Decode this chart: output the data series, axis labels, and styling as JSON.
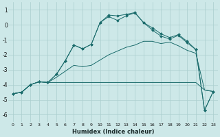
{
  "xlabel": "Humidex (Indice chaleur)",
  "background_color": "#cde8e8",
  "grid_color": "#aacece",
  "line_color": "#1a6b6b",
  "x_ticks": [
    0,
    1,
    2,
    3,
    4,
    5,
    6,
    7,
    8,
    9,
    10,
    11,
    12,
    13,
    14,
    15,
    16,
    17,
    18,
    19,
    20,
    21,
    22,
    23
  ],
  "ylim": [
    -6.5,
    1.5
  ],
  "xlim": [
    -0.5,
    23.5
  ],
  "yticks": [
    1,
    0,
    -1,
    -2,
    -3,
    -4,
    -5,
    -6
  ],
  "line_flat": {
    "x": [
      0,
      1,
      2,
      3,
      4,
      5,
      6,
      7,
      8,
      9,
      10,
      11,
      12,
      13,
      14,
      15,
      16,
      17,
      18,
      19,
      20,
      21,
      22,
      23
    ],
    "y": [
      -4.6,
      -4.5,
      -4.0,
      -3.8,
      -3.85,
      -3.85,
      -3.85,
      -3.85,
      -3.85,
      -3.85,
      -3.85,
      -3.85,
      -3.85,
      -3.85,
      -3.85,
      -3.85,
      -3.85,
      -3.85,
      -3.85,
      -3.85,
      -3.85,
      -3.85,
      -4.35,
      -4.45
    ]
  },
  "line_diag": {
    "x": [
      0,
      1,
      2,
      3,
      4,
      5,
      6,
      7,
      8,
      9,
      10,
      11,
      12,
      13,
      14,
      15,
      16,
      17,
      18,
      19,
      20,
      21,
      22,
      23
    ],
    "y": [
      -4.6,
      -4.5,
      -4.0,
      -3.8,
      -3.85,
      -3.5,
      -3.1,
      -2.7,
      -2.8,
      -2.7,
      -2.35,
      -2.0,
      -1.75,
      -1.5,
      -1.35,
      -1.1,
      -1.1,
      -1.25,
      -1.15,
      -1.4,
      -1.7,
      -1.9,
      -4.35,
      -4.45
    ]
  },
  "line_curve1": {
    "x": [
      0,
      1,
      2,
      3,
      4,
      5,
      6,
      7,
      8,
      9,
      10,
      11,
      12,
      13,
      14,
      15,
      16,
      17,
      18,
      19,
      20,
      21,
      22,
      23
    ],
    "y": [
      -4.6,
      -4.5,
      -4.0,
      -3.8,
      -3.85,
      -3.3,
      -2.4,
      -1.35,
      -1.6,
      -1.3,
      0.15,
      0.55,
      0.3,
      0.6,
      0.8,
      0.15,
      -0.35,
      -0.75,
      -0.95,
      -0.7,
      -1.2,
      -1.65,
      -5.7,
      -4.45
    ]
  },
  "line_curve2": {
    "x": [
      0,
      1,
      2,
      3,
      4,
      5,
      6,
      7,
      8,
      9,
      10,
      11,
      12,
      13,
      14,
      15,
      16,
      17,
      18,
      19,
      20,
      21,
      22,
      23
    ],
    "y": [
      -4.6,
      -4.5,
      -4.0,
      -3.8,
      -3.85,
      -3.3,
      -2.4,
      -1.35,
      -1.6,
      -1.3,
      0.15,
      0.65,
      0.6,
      0.7,
      0.82,
      0.15,
      -0.2,
      -0.6,
      -0.85,
      -0.65,
      -1.1,
      -1.65,
      -5.7,
      -4.45
    ]
  }
}
